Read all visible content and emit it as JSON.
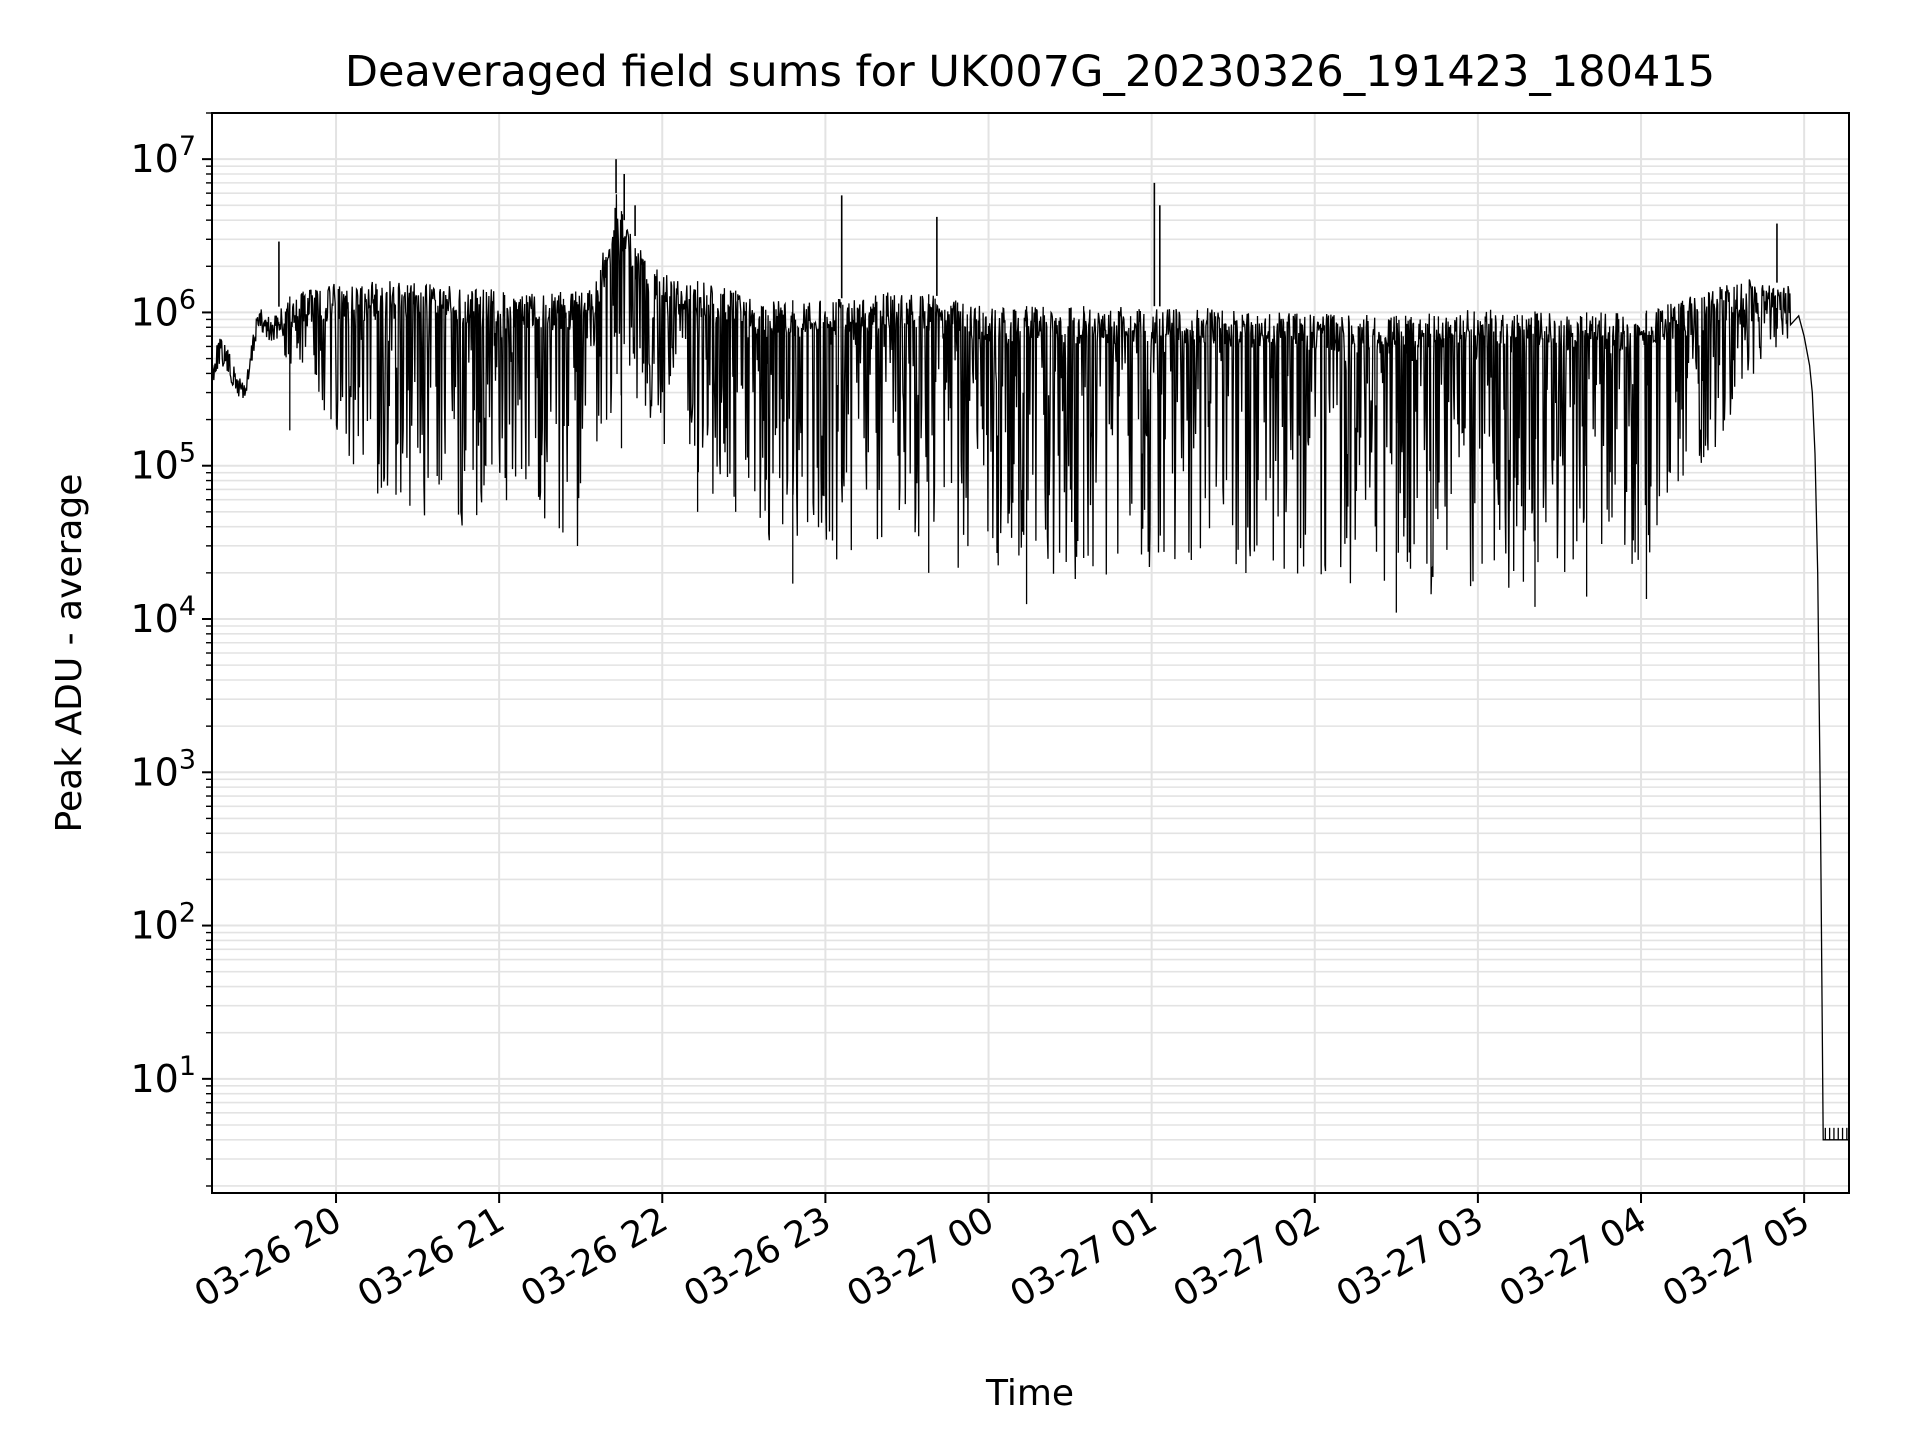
{
  "chart_data": {
    "type": "line",
    "title": "Deaveraged field sums for UK007G_20230326_191423_180415",
    "xlabel": "Time",
    "ylabel": "Peak ADU - average",
    "yscale": "log",
    "grid": true,
    "legend": "none",
    "line_color": "#000000",
    "x_tick_labels": [
      "03-26 20",
      "03-26 21",
      "03-26 22",
      "03-26 23",
      "03-27 00",
      "03-27 01",
      "03-27 02",
      "03-27 03",
      "03-27 04",
      "03-27 05"
    ],
    "x_ticks": [
      "2023-03-26 20:00",
      "2023-03-26 21:00",
      "2023-03-26 22:00",
      "2023-03-26 23:00",
      "2023-03-27 00:00",
      "2023-03-27 01:00",
      "2023-03-27 02:00",
      "2023-03-27 03:00",
      "2023-03-27 04:00",
      "2023-03-27 05:00"
    ],
    "xlim": [
      "2023-03-26 19:14:23",
      "2023-03-27 05:16:30"
    ],
    "y_ticks": [
      10,
      100,
      1000,
      10000,
      100000,
      1000000,
      10000000
    ],
    "y_tick_base": "10",
    "y_tick_exponents": [
      "1",
      "2",
      "3",
      "4",
      "5",
      "6",
      "7"
    ],
    "ylim": [
      1.8,
      20000000
    ],
    "series": [
      {
        "upper_envelope": [
          [
            "2023-03-26 19:14:23",
            500000
          ],
          [
            "2023-03-26 19:17",
            700000
          ],
          [
            "2023-03-26 19:20",
            600000
          ],
          [
            "2023-03-26 19:23",
            420000
          ],
          [
            "2023-03-26 19:27",
            380000
          ],
          [
            "2023-03-26 19:31",
            1100000
          ],
          [
            "2023-03-26 19:37",
            900000
          ],
          [
            "2023-03-26 19:40",
            1200000
          ],
          [
            "2023-03-26 19:50",
            1450000
          ],
          [
            "2023-03-26 20:00",
            1550000
          ],
          [
            "2023-03-26 20:20",
            1600000
          ],
          [
            "2023-03-26 20:40",
            1500000
          ],
          [
            "2023-03-26 21:00",
            1400000
          ],
          [
            "2023-03-26 21:20",
            1350000
          ],
          [
            "2023-03-26 21:35",
            1400000
          ],
          [
            "2023-03-26 21:43",
            6000000
          ],
          [
            "2023-03-26 21:46",
            4000000
          ],
          [
            "2023-03-26 21:52",
            2800000
          ],
          [
            "2023-03-26 22:00",
            1800000
          ],
          [
            "2023-03-26 22:20",
            1500000
          ],
          [
            "2023-03-26 22:40",
            1200000
          ],
          [
            "2023-03-26 23:00",
            1200000
          ],
          [
            "2023-03-26 23:30",
            1400000
          ],
          [
            "2023-03-27 00:00",
            1100000
          ],
          [
            "2023-03-27 00:30",
            1100000
          ],
          [
            "2023-03-27 01:00",
            1100000
          ],
          [
            "2023-03-27 01:30",
            1050000
          ],
          [
            "2023-03-27 02:00",
            1000000
          ],
          [
            "2023-03-27 02:30",
            950000
          ],
          [
            "2023-03-27 03:00",
            1050000
          ],
          [
            "2023-03-27 03:30",
            1000000
          ],
          [
            "2023-03-27 04:00",
            1000000
          ],
          [
            "2023-03-27 04:20",
            1300000
          ],
          [
            "2023-03-27 04:40",
            1700000
          ],
          [
            "2023-03-27 04:55",
            1500000
          ]
        ],
        "lower_envelope": [
          [
            "2023-03-26 19:40",
            500000
          ],
          [
            "2023-03-26 19:50",
            300000
          ],
          [
            "2023-03-26 20:00",
            150000
          ],
          [
            "2023-03-26 20:15",
            60000
          ],
          [
            "2023-03-26 20:30",
            38000
          ],
          [
            "2023-03-26 21:00",
            32000
          ],
          [
            "2023-03-26 21:20",
            28000
          ],
          [
            "2023-03-26 21:30",
            30000
          ],
          [
            "2023-03-26 21:40",
            200000
          ],
          [
            "2023-03-26 21:50",
            250000
          ],
          [
            "2023-03-26 22:10",
            80000
          ],
          [
            "2023-03-26 22:30",
            50000
          ],
          [
            "2023-03-26 22:45",
            25000
          ],
          [
            "2023-03-26 23:00",
            22000
          ],
          [
            "2023-03-26 23:30",
            40000
          ],
          [
            "2023-03-26 23:50",
            20000
          ],
          [
            "2023-03-27 00:30",
            18000
          ],
          [
            "2023-03-27 01:00",
            20000
          ],
          [
            "2023-03-27 01:30",
            20000
          ],
          [
            "2023-03-27 02:00",
            17000
          ],
          [
            "2023-03-27 02:30",
            14000
          ],
          [
            "2023-03-27 03:00",
            15000
          ],
          [
            "2023-03-27 03:30",
            17000
          ],
          [
            "2023-03-27 04:00",
            20000
          ],
          [
            "2023-03-27 04:15",
            70000
          ],
          [
            "2023-03-27 04:30",
            150000
          ],
          [
            "2023-03-27 04:45",
            400000
          ],
          [
            "2023-03-27 04:55",
            600000
          ]
        ],
        "tail": [
          [
            "2023-03-27 04:58",
            950000
          ],
          [
            "2023-03-27 05:00",
            700000
          ],
          [
            "2023-03-27 05:02",
            450000
          ],
          [
            "2023-03-27 05:03",
            300000
          ],
          [
            "2023-03-27 05:04",
            120000
          ],
          [
            "2023-03-27 05:05",
            20000
          ],
          [
            "2023-03-27 05:06",
            500
          ],
          [
            "2023-03-27 05:07",
            4
          ],
          [
            "2023-03-27 05:16:30",
            4
          ]
        ],
        "spikes": [
          [
            "2023-03-26 19:39",
            2900000
          ],
          [
            "2023-03-26 21:43",
            10000000
          ],
          [
            "2023-03-26 21:46",
            8000000
          ],
          [
            "2023-03-26 21:50",
            5000000
          ],
          [
            "2023-03-26 23:06",
            5800000
          ],
          [
            "2023-03-26 23:41",
            4200000
          ],
          [
            "2023-03-27 01:01",
            7000000
          ],
          [
            "2023-03-27 01:03",
            5000000
          ],
          [
            "2023-03-27 04:50",
            3800000
          ]
        ],
        "dips": [
          [
            "2023-03-26 19:43",
            170000
          ],
          [
            "2023-03-26 21:45",
            130000
          ],
          [
            "2023-03-26 22:13",
            50000
          ],
          [
            "2023-03-26 22:27",
            50000
          ],
          [
            "2023-03-26 22:48",
            17000
          ],
          [
            "2023-03-26 23:38",
            20000
          ],
          [
            "2023-03-27 00:14",
            12500
          ],
          [
            "2023-03-27 00:35",
            25000
          ],
          [
            "2023-03-27 02:30",
            11000
          ],
          [
            "2023-03-27 03:21",
            12000
          ],
          [
            "2023-03-27 03:40",
            14000
          ],
          [
            "2023-03-27 04:02",
            13500
          ]
        ]
      }
    ]
  }
}
